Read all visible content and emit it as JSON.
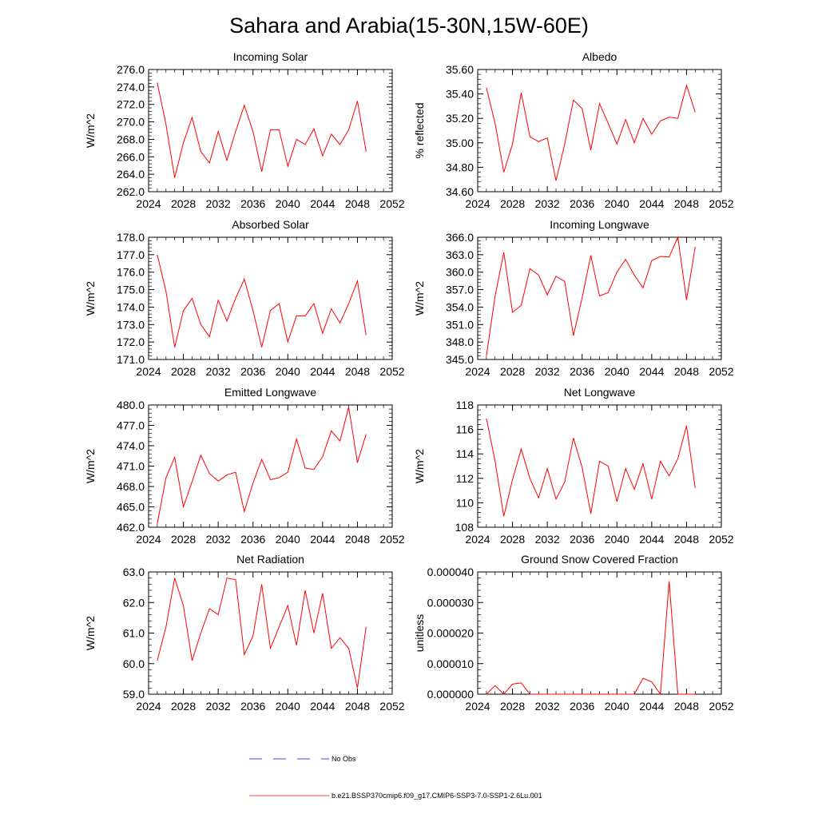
{
  "title": "Sahara and Arabia(15-30N,15W-60E)",
  "colors": {
    "model": "#ff0000",
    "obs": "#0000ff",
    "axis": "#000000"
  },
  "legend": {
    "obs_label": "No Obs",
    "model_label": "b.e21.BSSP370cmip6.f09_g17.CMIP6-SSP3-7.0-SSP1-2.6Lu.001"
  },
  "chart_data": [
    {
      "type": "line",
      "title": "Incoming Solar",
      "xlabel": "",
      "ylabel": "W/m^2",
      "xlim": [
        2024,
        2052
      ],
      "ylim": [
        262,
        276
      ],
      "xticks": [
        2024,
        2028,
        2032,
        2036,
        2040,
        2044,
        2048,
        2052
      ],
      "xtick_labels": [
        "2024",
        "2028",
        "2032",
        "2036",
        "2040",
        "2044",
        "2048",
        "2052"
      ],
      "yticks": [
        262,
        264,
        266,
        268,
        270,
        272,
        274,
        276
      ],
      "ytick_labels": [
        "262.0",
        "264.0",
        "266.0",
        "268.0",
        "270.0",
        "272.0",
        "274.0",
        "276.0"
      ],
      "x": [
        2025,
        2026,
        2027,
        2028,
        2029,
        2030,
        2031,
        2032,
        2033,
        2034,
        2035,
        2036,
        2037,
        2038,
        2039,
        2040,
        2041,
        2042,
        2043,
        2044,
        2045,
        2046,
        2047,
        2048,
        2049
      ],
      "series": [
        {
          "values": [
            274.5,
            269.7,
            263.6,
            267.6,
            270.5,
            266.6,
            265.3,
            268.9,
            265.6,
            268.9,
            271.9,
            268.9,
            264.3,
            269.1,
            269.1,
            264.9,
            268.0,
            267.4,
            269.2,
            266.1,
            268.6,
            267.4,
            269.1,
            272.4,
            266.6
          ]
        }
      ]
    },
    {
      "type": "line",
      "title": "Albedo",
      "xlabel": "",
      "ylabel": "% reflected",
      "xlim": [
        2024,
        2052
      ],
      "ylim": [
        34.6,
        35.6
      ],
      "xticks": [
        2024,
        2028,
        2032,
        2036,
        2040,
        2044,
        2048,
        2052
      ],
      "xtick_labels": [
        "2024",
        "2028",
        "2032",
        "2036",
        "2040",
        "2044",
        "2048",
        "2052"
      ],
      "yticks": [
        34.6,
        34.8,
        35.0,
        35.2,
        35.4,
        35.6
      ],
      "ytick_labels": [
        "34.60",
        "34.80",
        "35.00",
        "35.20",
        "35.40",
        "35.60"
      ],
      "x": [
        2025,
        2026,
        2027,
        2028,
        2029,
        2030,
        2031,
        2032,
        2033,
        2034,
        2035,
        2036,
        2037,
        2038,
        2039,
        2040,
        2041,
        2042,
        2043,
        2044,
        2045,
        2046,
        2047,
        2048,
        2049
      ],
      "series": [
        {
          "values": [
            35.45,
            35.16,
            34.76,
            34.99,
            35.41,
            35.05,
            35.01,
            35.04,
            34.69,
            34.99,
            35.35,
            35.28,
            34.94,
            35.32,
            35.16,
            34.99,
            35.19,
            35.0,
            35.2,
            35.07,
            35.18,
            35.21,
            35.2,
            35.47,
            35.25
          ]
        }
      ]
    },
    {
      "type": "line",
      "title": "Absorbed Solar",
      "xlabel": "",
      "ylabel": "W/m^2",
      "xlim": [
        2024,
        2052
      ],
      "ylim": [
        171,
        178
      ],
      "xticks": [
        2024,
        2028,
        2032,
        2036,
        2040,
        2044,
        2048,
        2052
      ],
      "xtick_labels": [
        "2024",
        "2028",
        "2032",
        "2036",
        "2040",
        "2044",
        "2048",
        "2052"
      ],
      "yticks": [
        171,
        172,
        173,
        174,
        175,
        176,
        177,
        178
      ],
      "ytick_labels": [
        "171.0",
        "172.0",
        "173.0",
        "174.0",
        "175.0",
        "176.0",
        "177.0",
        "178.0"
      ],
      "x": [
        2025,
        2026,
        2027,
        2028,
        2029,
        2030,
        2031,
        2032,
        2033,
        2034,
        2035,
        2036,
        2037,
        2038,
        2039,
        2040,
        2041,
        2042,
        2043,
        2044,
        2045,
        2046,
        2047,
        2048,
        2049
      ],
      "series": [
        {
          "values": [
            177.0,
            174.9,
            171.7,
            173.8,
            174.5,
            173.0,
            172.3,
            174.4,
            173.2,
            174.5,
            175.6,
            173.8,
            171.7,
            173.8,
            174.2,
            172.0,
            173.5,
            173.5,
            174.2,
            172.5,
            173.9,
            173.1,
            174.2,
            175.5,
            172.4
          ]
        }
      ]
    },
    {
      "type": "line",
      "title": "Incoming Longwave",
      "xlabel": "",
      "ylabel": "W/m^2",
      "xlim": [
        2024,
        2052
      ],
      "ylim": [
        345,
        366
      ],
      "xticks": [
        2024,
        2028,
        2032,
        2036,
        2040,
        2044,
        2048,
        2052
      ],
      "xtick_labels": [
        "2024",
        "2028",
        "2032",
        "2036",
        "2040",
        "2044",
        "2048",
        "2052"
      ],
      "yticks": [
        345,
        348,
        351,
        354,
        357,
        360,
        363,
        366
      ],
      "ytick_labels": [
        "345.0",
        "348.0",
        "351.0",
        "354.0",
        "357.0",
        "360.0",
        "363.0",
        "366.0"
      ],
      "x": [
        2025,
        2026,
        2027,
        2028,
        2029,
        2030,
        2031,
        2032,
        2033,
        2034,
        2035,
        2036,
        2037,
        2038,
        2039,
        2040,
        2041,
        2042,
        2043,
        2044,
        2045,
        2046,
        2047,
        2048,
        2049
      ],
      "series": [
        {
          "values": [
            345.6,
            355.9,
            363.4,
            353.1,
            354.3,
            360.6,
            359.5,
            356.1,
            359.3,
            358.4,
            349.1,
            355.6,
            362.9,
            355.9,
            356.5,
            360.0,
            362.2,
            359.5,
            357.3,
            362.0,
            362.7,
            362.6,
            366.0,
            355.2,
            364.4
          ]
        }
      ]
    },
    {
      "type": "line",
      "title": "Emitted Longwave",
      "xlabel": "",
      "ylabel": "W/m^2",
      "xlim": [
        2024,
        2052
      ],
      "ylim": [
        462,
        480
      ],
      "xticks": [
        2024,
        2028,
        2032,
        2036,
        2040,
        2044,
        2048,
        2052
      ],
      "xtick_labels": [
        "2024",
        "2028",
        "2032",
        "2036",
        "2040",
        "2044",
        "2048",
        "2052"
      ],
      "yticks": [
        462,
        465,
        468,
        471,
        474,
        477,
        480
      ],
      "ytick_labels": [
        "462.0",
        "465.0",
        "468.0",
        "471.0",
        "474.0",
        "477.0",
        "480.0"
      ],
      "x": [
        2025,
        2026,
        2027,
        2028,
        2029,
        2030,
        2031,
        2032,
        2033,
        2034,
        2035,
        2036,
        2037,
        2038,
        2039,
        2040,
        2041,
        2042,
        2043,
        2044,
        2045,
        2046,
        2047,
        2048,
        2049
      ],
      "series": [
        {
          "values": [
            462.5,
            469.3,
            472.3,
            465.0,
            468.7,
            472.6,
            469.9,
            468.8,
            469.7,
            470.1,
            464.3,
            468.5,
            472.0,
            469.0,
            469.3,
            470.1,
            475.0,
            470.7,
            470.5,
            472.4,
            476.2,
            474.7,
            479.7,
            471.5,
            475.7
          ]
        }
      ]
    },
    {
      "type": "line",
      "title": "Net Longwave",
      "xlabel": "",
      "ylabel": "W/m^2",
      "xlim": [
        2024,
        2052
      ],
      "ylim": [
        108,
        118
      ],
      "xticks": [
        2024,
        2028,
        2032,
        2036,
        2040,
        2044,
        2048,
        2052
      ],
      "xtick_labels": [
        "2024",
        "2028",
        "2032",
        "2036",
        "2040",
        "2044",
        "2048",
        "2052"
      ],
      "yticks": [
        108,
        110,
        112,
        114,
        116,
        118
      ],
      "ytick_labels": [
        "108",
        "110",
        "112",
        "114",
        "116",
        "118"
      ],
      "x": [
        2025,
        2026,
        2027,
        2028,
        2029,
        2030,
        2031,
        2032,
        2033,
        2034,
        2035,
        2036,
        2037,
        2038,
        2039,
        2040,
        2041,
        2042,
        2043,
        2044,
        2045,
        2046,
        2047,
        2048,
        2049
      ],
      "series": [
        {
          "values": [
            116.9,
            113.4,
            108.9,
            111.9,
            114.4,
            112.0,
            110.4,
            112.8,
            110.3,
            111.7,
            115.3,
            112.9,
            109.1,
            113.4,
            113.0,
            110.1,
            112.8,
            111.1,
            113.2,
            110.3,
            113.4,
            112.2,
            113.6,
            116.3,
            111.2
          ]
        }
      ]
    },
    {
      "type": "line",
      "title": "Net Radiation",
      "xlabel": "",
      "ylabel": "W/m^2",
      "xlim": [
        2024,
        2052
      ],
      "ylim": [
        59,
        63
      ],
      "xticks": [
        2024,
        2028,
        2032,
        2036,
        2040,
        2044,
        2048,
        2052
      ],
      "xtick_labels": [
        "2024",
        "2028",
        "2032",
        "2036",
        "2040",
        "2044",
        "2048",
        "2052"
      ],
      "yticks": [
        59,
        60,
        61,
        62,
        63
      ],
      "ytick_labels": [
        "59.0",
        "60.0",
        "61.0",
        "62.0",
        "63.0"
      ],
      "x": [
        2025,
        2026,
        2027,
        2028,
        2029,
        2030,
        2031,
        2032,
        2033,
        2034,
        2035,
        2036,
        2037,
        2038,
        2039,
        2040,
        2041,
        2042,
        2043,
        2044,
        2045,
        2046,
        2047,
        2048,
        2049
      ],
      "series": [
        {
          "values": [
            60.1,
            61.2,
            62.8,
            61.9,
            60.1,
            61.0,
            61.8,
            61.6,
            62.8,
            62.75,
            60.3,
            60.9,
            62.6,
            60.5,
            61.2,
            61.9,
            60.6,
            62.4,
            61.0,
            62.3,
            60.5,
            60.85,
            60.5,
            59.2,
            61.2
          ]
        }
      ]
    },
    {
      "type": "line",
      "title": "Ground Snow Covered Fraction",
      "xlabel": "",
      "ylabel": "unitless",
      "xlim": [
        2024,
        2052
      ],
      "ylim": [
        0,
        4e-05
      ],
      "xticks": [
        2024,
        2028,
        2032,
        2036,
        2040,
        2044,
        2048,
        2052
      ],
      "xtick_labels": [
        "2024",
        "2028",
        "2032",
        "2036",
        "2040",
        "2044",
        "2048",
        "2052"
      ],
      "yticks": [
        0,
        1e-05,
        2e-05,
        3e-05,
        4e-05
      ],
      "ytick_labels": [
        "0.000000",
        "0.000010",
        "0.000020",
        "0.000030",
        "0.000040"
      ],
      "x": [
        2025,
        2026,
        2027,
        2028,
        2029,
        2030,
        2031,
        2032,
        2033,
        2034,
        2035,
        2036,
        2037,
        2038,
        2039,
        2040,
        2041,
        2042,
        2043,
        2044,
        2045,
        2046,
        2047,
        2048,
        2049
      ],
      "series": [
        {
          "values": [
            0,
            2.8e-06,
            0,
            3.3e-06,
            3.7e-06,
            0,
            0,
            0,
            0,
            0,
            0,
            0,
            0,
            0,
            0,
            0,
            0,
            0,
            5.2e-06,
            4e-06,
            0,
            3.7e-05,
            0,
            0,
            0
          ]
        }
      ]
    }
  ]
}
